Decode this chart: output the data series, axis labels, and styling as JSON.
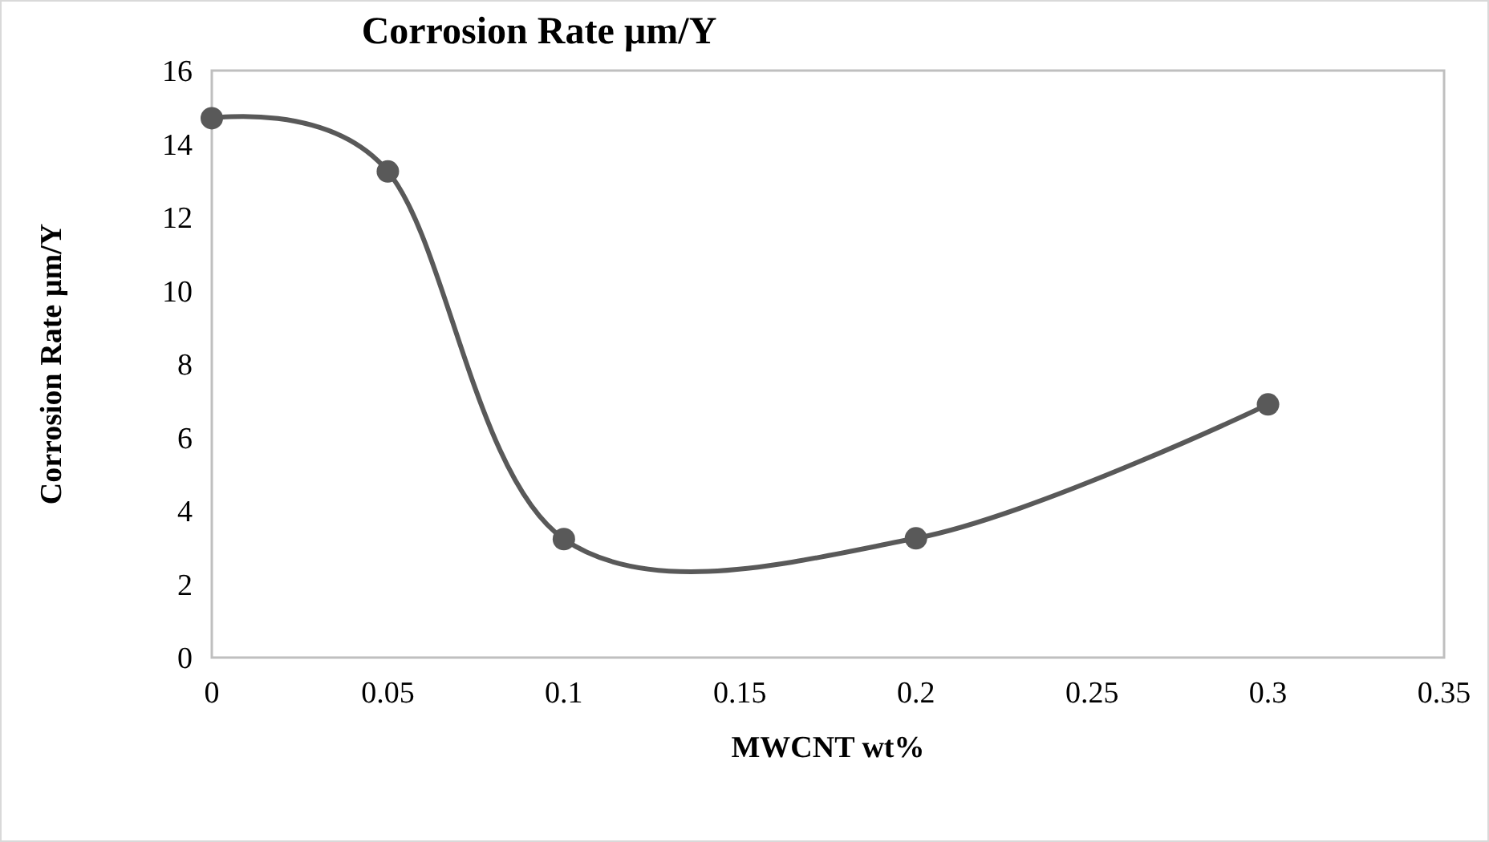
{
  "chart_data": {
    "type": "line",
    "title": "Corrosion Rate µm/Y",
    "xlabel": "MWCNT wt%",
    "ylabel": "Corrosion Rate µm/Y",
    "x": [
      0,
      0.05,
      0.1,
      0.2,
      0.3
    ],
    "series": [
      {
        "color": "#595959",
        "values": [
          14.7,
          13.25,
          3.23,
          3.25,
          6.9
        ]
      }
    ],
    "xlim": [
      0,
      0.35
    ],
    "xticks": [
      0,
      0.05,
      0.1,
      0.15,
      0.2,
      0.25,
      0.3,
      0.35
    ],
    "ylim": [
      0,
      16
    ],
    "yticks": [
      0,
      2,
      4,
      6,
      8,
      10,
      12,
      14,
      16
    ],
    "grid": false,
    "marker": "circle",
    "line_style": "solid"
  }
}
